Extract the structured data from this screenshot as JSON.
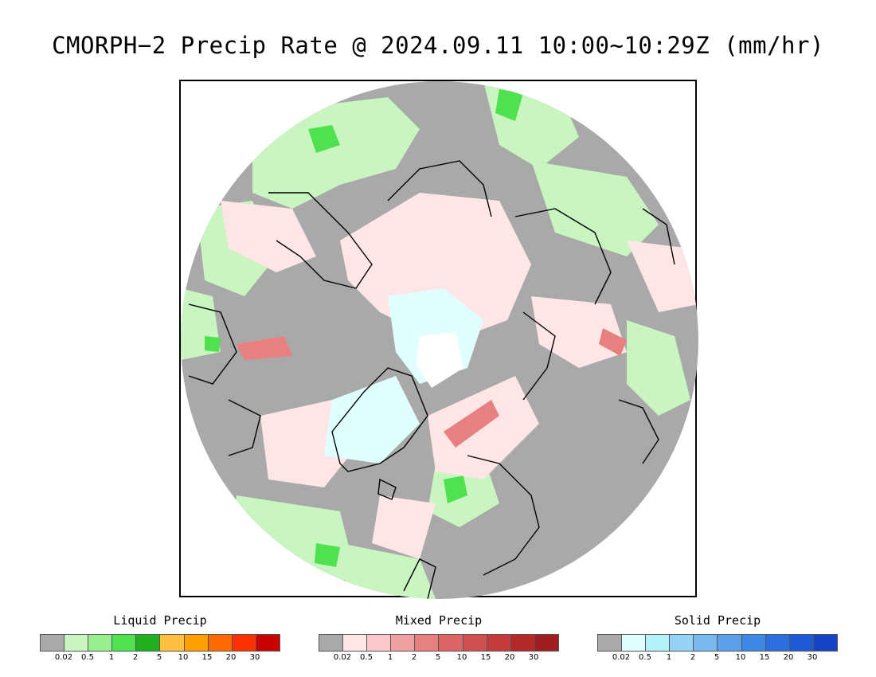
{
  "title": "CMORPH−2 Precip Rate @ 2024.09.11 10:00~10:29Z (mm/hr)",
  "map": {
    "projection": "north polar stereographic",
    "background_color": "#a9a9a9",
    "ocean_color": "#a9a9a9"
  },
  "legends": [
    {
      "id": "liquid",
      "title": "Liquid Precip",
      "colors": [
        "#a9a9a9",
        "#c8f5c0",
        "#96ee8c",
        "#50e150",
        "#20b020",
        "#ffc040",
        "#ffa000",
        "#ff6a00",
        "#ff3000",
        "#c80000"
      ],
      "tick_labels": [
        "0.02",
        "0.5",
        "1",
        "2",
        "5",
        "10",
        "15",
        "20",
        "30"
      ]
    },
    {
      "id": "mixed",
      "title": "Mixed Precip",
      "colors": [
        "#a9a9a9",
        "#ffe6e6",
        "#fac8c8",
        "#f0a0a0",
        "#e88080",
        "#dc6464",
        "#d05050",
        "#c43c3c",
        "#b42828",
        "#a01e1e"
      ],
      "tick_labels": [
        "0.02",
        "0.5",
        "1",
        "2",
        "5",
        "10",
        "15",
        "20",
        "30"
      ]
    },
    {
      "id": "solid",
      "title": "Solid Precip",
      "colors": [
        "#a9a9a9",
        "#e0ffff",
        "#b4f0fa",
        "#96d2f5",
        "#78b8f0",
        "#5aa0eb",
        "#4088e6",
        "#2c70e0",
        "#1e5ad8",
        "#1444c8"
      ],
      "tick_labels": [
        "0.02",
        "0.5",
        "1",
        "2",
        "5",
        "10",
        "15",
        "20",
        "30"
      ]
    }
  ]
}
